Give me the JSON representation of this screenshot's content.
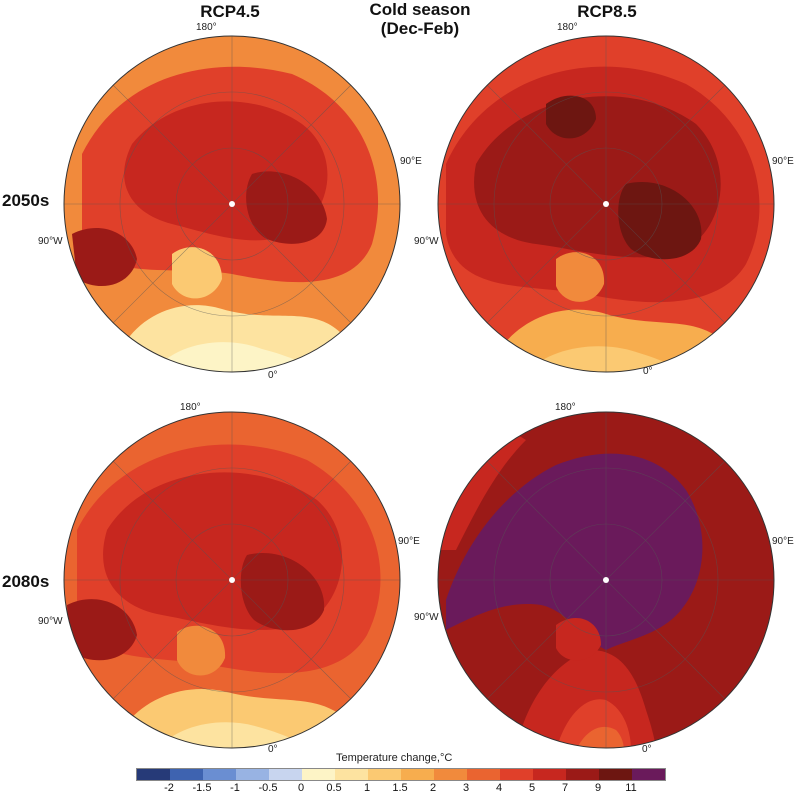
{
  "columns": {
    "left": "RCP4.5",
    "center_line1": "Cold season",
    "center_line2": "(Dec-Feb)",
    "right": "RCP8.5"
  },
  "rows": {
    "top": "2050s",
    "bottom": "2080s"
  },
  "coords": {
    "lon180": "180°",
    "lon90e": "90°E",
    "lon90w": "90°W",
    "lon0": "0°"
  },
  "legend": {
    "title": "Temperature change,°C",
    "ticks": [
      "-2",
      "-1.5",
      "-1",
      "-0.5",
      "0",
      "0.5",
      "1",
      "1.5",
      "2",
      "3",
      "4",
      "5",
      "7",
      "9",
      "11"
    ],
    "colors": [
      "#263a78",
      "#3e63b0",
      "#6a8ed2",
      "#98b3e3",
      "#c8d5ef",
      "#fdf4c6",
      "#fde3a0",
      "#fbc972",
      "#f7ad4e",
      "#f18a3c",
      "#ea6430",
      "#e0402a",
      "#c7271f",
      "#9b1a17",
      "#6d1611",
      "#6a1a5b"
    ]
  },
  "maps": [
    {
      "id": "rcp45-2050s",
      "background": "#f18a3c",
      "ring": "#e0402a",
      "inner": "#c7271f",
      "core": "#9b1a17",
      "atlantic": "#fde3a0",
      "atlantic_core": "#fbc972"
    },
    {
      "id": "rcp85-2050s",
      "background": "#e0402a",
      "ring": "#c7271f",
      "inner": "#9b1a17",
      "core": "#6d1611",
      "atlantic": "#f7ad4e",
      "atlantic_core": "#f18a3c"
    },
    {
      "id": "rcp45-2080s",
      "background": "#ea6430",
      "ring": "#e0402a",
      "inner": "#c7271f",
      "core": "#9b1a17",
      "atlantic": "#fbc972",
      "atlantic_core": "#f7ad4e"
    },
    {
      "id": "rcp85-2080s",
      "background": "#9b1a17",
      "ring": "#c7271f",
      "inner": "#6a1a5b",
      "core": "#6a1a5b",
      "atlantic": "#e0402a",
      "atlantic_core": "#ea6430"
    }
  ]
}
